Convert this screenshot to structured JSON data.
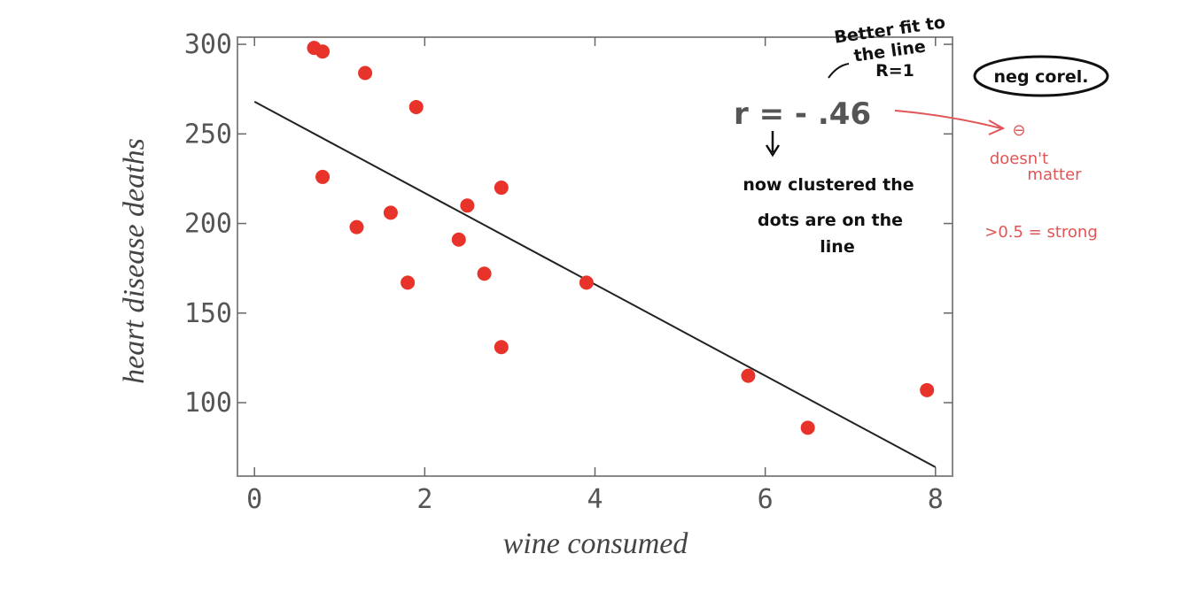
{
  "chart_data": {
    "type": "scatter",
    "xlabel": "wine consumed",
    "ylabel": "heart disease deaths",
    "x": [
      0.7,
      0.8,
      1.3,
      1.9,
      0.8,
      1.2,
      1.6,
      1.8,
      2.5,
      2.9,
      2.4,
      2.7,
      2.9,
      3.9,
      5.8,
      6.5,
      7.9
    ],
    "values": [
      298,
      296,
      284,
      265,
      226,
      198,
      206,
      167,
      210,
      220,
      191,
      172,
      131,
      167,
      115,
      86,
      107
    ],
    "color": "#e8332a",
    "fit_line": {
      "x": [
        0,
        8
      ],
      "y": [
        268,
        64
      ],
      "color": "#222222"
    },
    "xlim": [
      -0.2,
      8.2
    ],
    "ylim": [
      59,
      304
    ],
    "xticks": [
      0,
      2,
      4,
      6,
      8
    ],
    "yticks": [
      100,
      150,
      200,
      250,
      300
    ],
    "annotations": {
      "r": "r = - .46",
      "better_fit": [
        "Better fit to",
        "the line",
        "R=1"
      ],
      "neg": "neg corel.",
      "sign": "⊖",
      "doesnt_matter": [
        "doesn't",
        "matter"
      ],
      "strong": ">0.5 = strong",
      "clustered": [
        "now clustered the",
        "dots are on the",
        "line"
      ]
    }
  }
}
